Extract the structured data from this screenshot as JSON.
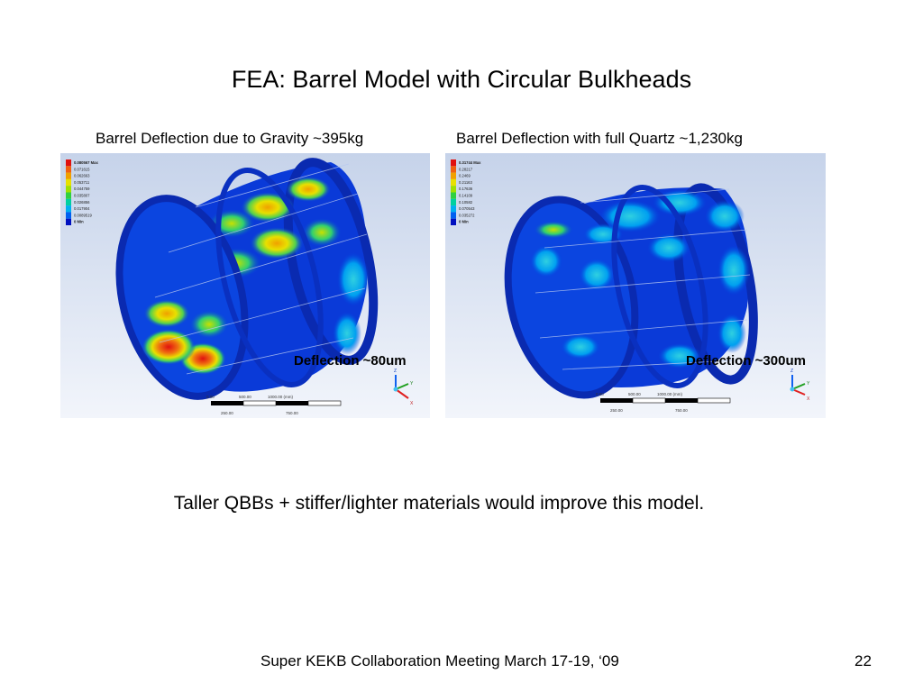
{
  "slide": {
    "title": "FEA:  Barrel Model with Circular Bulkheads",
    "left_caption": "Barrel Deflection due to Gravity ~395kg",
    "right_caption": "Barrel Deflection with full Quartz ~1,230kg",
    "left_deflection": "Deflection ~80um",
    "right_deflection": "Deflection ~300um",
    "note": "Taller QBBs + stiffer/lighter materials would improve this model.",
    "footer": "Super KEKB Collaboration Meeting March 17-19, ‘09",
    "page_number": "22"
  },
  "left_legend": {
    "values": [
      "0.080567 Max",
      "0.071615",
      "0.062663",
      "0.053711",
      "0.044759",
      "0.035807",
      "0.026856",
      "0.017904",
      "0.0089519",
      "0 Min"
    ]
  },
  "right_legend": {
    "values": [
      "0.31744 Max",
      "0.28217",
      "0.2469",
      "0.21163",
      "0.17636",
      "0.14109",
      "0.10582",
      "0.070543",
      "0.035272",
      "0 Min"
    ]
  },
  "scale_bar": {
    "top_labels": [
      "0.00",
      "500.00",
      "1000.00 (mm)"
    ],
    "bottom_labels": [
      "250.00",
      "750.00"
    ]
  },
  "triad": {
    "z": "Z",
    "y": "Y",
    "x": "X"
  },
  "colors": {
    "legend_scale": [
      "#e01010",
      "#f06010",
      "#f0a000",
      "#e8e000",
      "#a0e000",
      "#30d040",
      "#00d0a0",
      "#00b0f0",
      "#0060f0",
      "#0010c0"
    ],
    "background_top": "#c6d3ea",
    "background_bottom": "#f2f5fb"
  }
}
